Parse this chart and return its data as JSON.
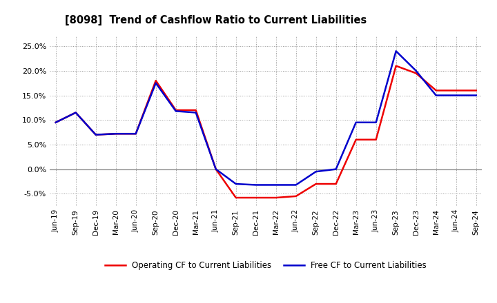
{
  "title": "[8098]  Trend of Cashflow Ratio to Current Liabilities",
  "x_labels": [
    "Jun-19",
    "Sep-19",
    "Dec-19",
    "Mar-20",
    "Jun-20",
    "Sep-20",
    "Dec-20",
    "Mar-21",
    "Jun-21",
    "Sep-21",
    "Dec-21",
    "Mar-22",
    "Jun-22",
    "Sep-22",
    "Dec-22",
    "Mar-23",
    "Jun-23",
    "Sep-23",
    "Dec-23",
    "Mar-24",
    "Jun-24",
    "Sep-24"
  ],
  "operating_cf": [
    9.5,
    11.5,
    7.0,
    7.2,
    7.2,
    18.0,
    12.0,
    12.0,
    0.0,
    -5.8,
    -5.8,
    -5.8,
    -5.5,
    -3.0,
    -3.0,
    6.0,
    6.0,
    21.0,
    19.5,
    16.0,
    16.0,
    16.0
  ],
  "free_cf": [
    9.5,
    11.5,
    7.0,
    7.2,
    7.2,
    17.5,
    11.8,
    11.5,
    0.0,
    -3.0,
    -3.2,
    -3.2,
    -3.2,
    -0.5,
    0.0,
    9.5,
    9.5,
    24.0,
    20.0,
    15.0,
    15.0,
    15.0
  ],
  "operating_color": "#ee0000",
  "free_color": "#0000cc",
  "background_color": "#ffffff",
  "plot_bg_color": "#ffffff",
  "grid_color": "#999999",
  "ylim": [
    -7.5,
    27.0
  ],
  "yticks": [
    -5.0,
    0.0,
    5.0,
    10.0,
    15.0,
    20.0,
    25.0
  ],
  "legend_op": "Operating CF to Current Liabilities",
  "legend_free": "Free CF to Current Liabilities",
  "line_width": 1.8
}
